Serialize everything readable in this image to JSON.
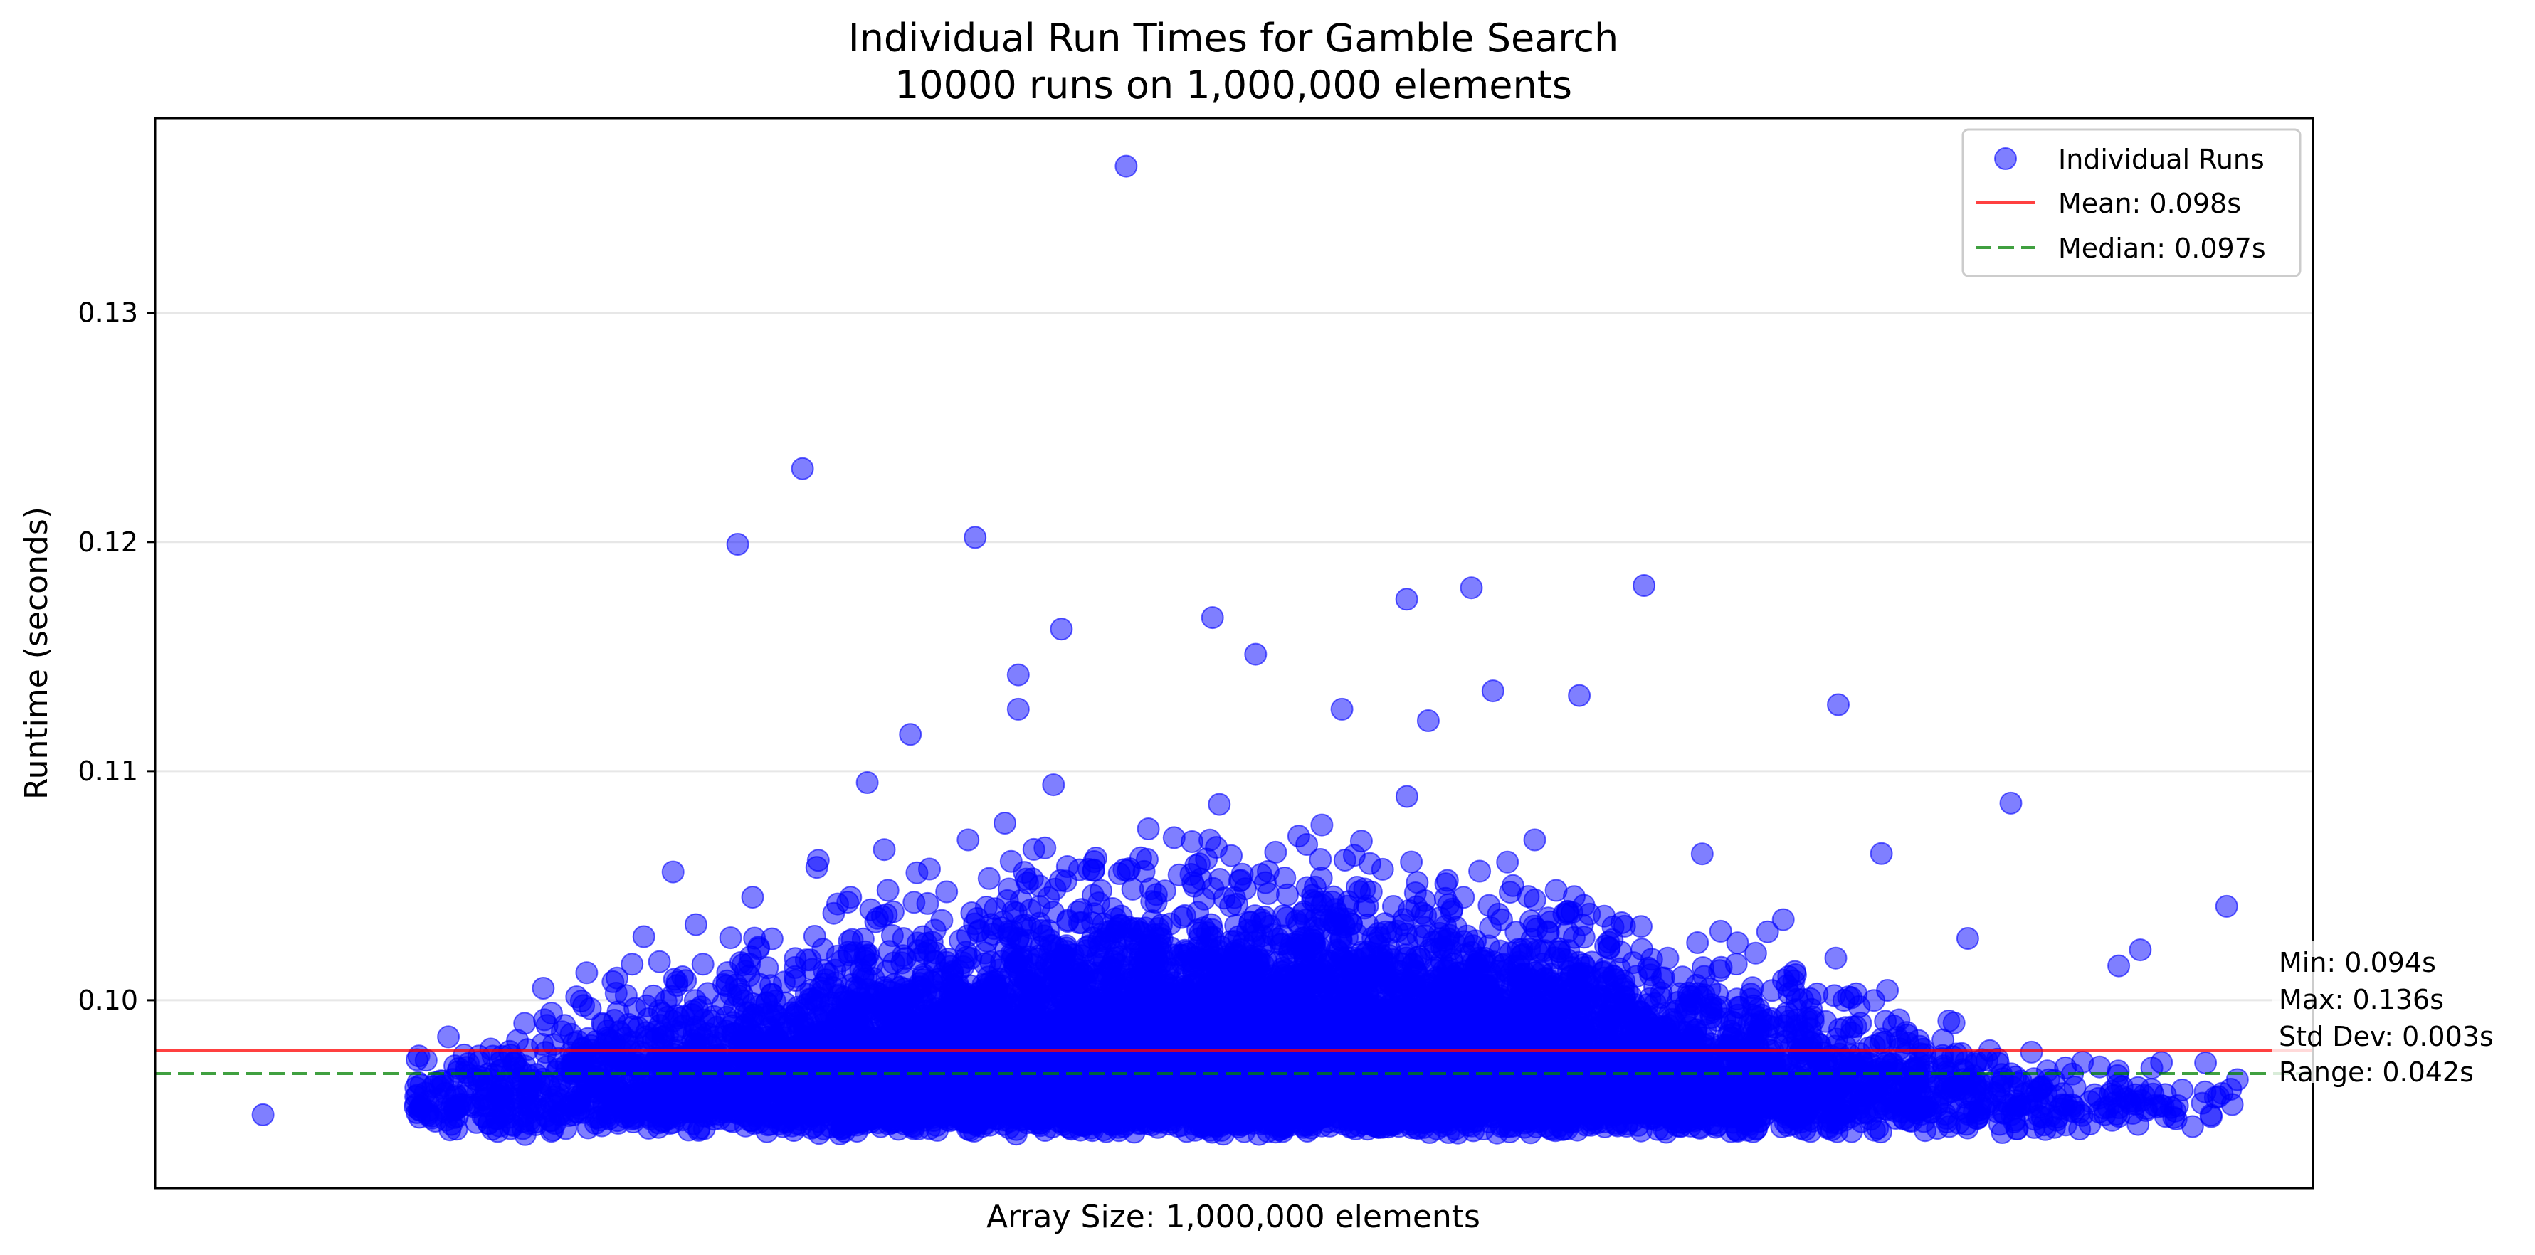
{
  "chart_data": {
    "type": "scatter",
    "title": "Individual Run Times for Gamble Search",
    "subtitle": "10000 runs on 1,000,000 elements",
    "xlabel": "Array Size: 1,000,000 elements",
    "ylabel": "Runtime (seconds)",
    "ylim": [
      0.0918,
      0.1385
    ],
    "xlim": [
      0,
      1
    ],
    "yticks": [
      {
        "value": 0.1,
        "label": "0.10"
      },
      {
        "value": 0.11,
        "label": "0.11"
      },
      {
        "value": 0.12,
        "label": "0.12"
      },
      {
        "value": 0.13,
        "label": "0.13"
      }
    ],
    "grid": "horizontal",
    "legend_position": "top-right",
    "series": [
      {
        "name": "Individual Runs",
        "kind": "scatter",
        "color": "#0000ff",
        "count": 10000,
        "points": [
          [
            0.45,
            0.1364
          ],
          [
            0.3,
            0.1232
          ],
          [
            0.27,
            0.1199
          ],
          [
            0.38,
            0.1202
          ],
          [
            0.61,
            0.118
          ],
          [
            0.58,
            0.1175
          ],
          [
            0.69,
            0.1181
          ],
          [
            0.49,
            0.1167
          ],
          [
            0.42,
            0.1162
          ],
          [
            0.51,
            0.1151
          ],
          [
            0.4,
            0.1142
          ],
          [
            0.78,
            0.1129
          ],
          [
            0.4,
            0.1127
          ],
          [
            0.59,
            0.1122
          ],
          [
            0.55,
            0.1127
          ],
          [
            0.62,
            0.1135
          ],
          [
            0.66,
            0.1133
          ],
          [
            0.86,
            0.1086
          ],
          [
            0.2,
            0.1012
          ],
          [
            0.05,
            0.095
          ],
          [
            0.96,
            0.1041
          ],
          [
            0.95,
            0.096
          ],
          [
            0.92,
            0.1022
          ],
          [
            0.91,
            0.1015
          ],
          [
            0.88,
            0.0965
          ],
          [
            0.16,
            0.0973
          ],
          [
            0.15,
            0.0965
          ],
          [
            0.33,
            0.1095
          ],
          [
            0.35,
            0.1116
          ],
          [
            0.24,
            0.1056
          ],
          [
            0.8,
            0.1064
          ],
          [
            0.84,
            0.1027
          ]
        ]
      },
      {
        "name": "Mean: 0.098s",
        "kind": "hline",
        "value": 0.0978,
        "color": "#ff0000",
        "style": "solid"
      },
      {
        "name": "Median: 0.097s",
        "kind": "hline",
        "value": 0.0968,
        "color": "#008000",
        "style": "dashed"
      }
    ],
    "annotations": [
      "Min: 0.094s",
      "Max: 0.136s",
      "Std Dev: 0.003s",
      "Range: 0.042s"
    ]
  }
}
